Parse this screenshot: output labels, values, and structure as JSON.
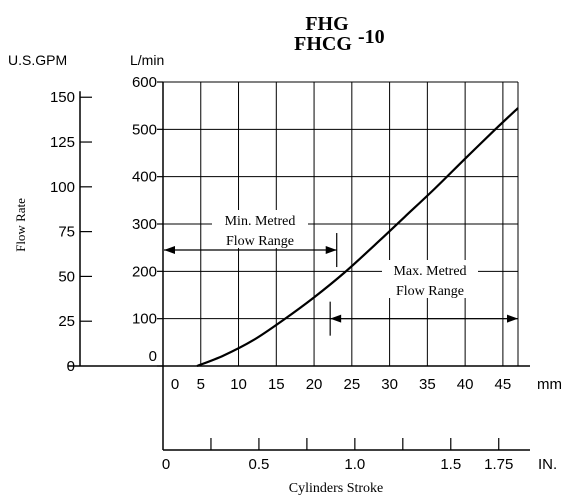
{
  "chart_data": {
    "type": "line",
    "title_line1": "FHG",
    "title_line2": "FHCG",
    "title_suffix": "-10",
    "left_axis_unit": "U.S.GPM",
    "right_axis_unit": "L/min",
    "ylabel": "Flow Rate",
    "xlabel": "Cylinders Stroke",
    "x_mm_unit": "mm",
    "x_in_unit": "IN.",
    "gpm_ticks": [
      "150",
      "125",
      "100",
      "75",
      "50",
      "25",
      "0"
    ],
    "gpm_tick_values": [
      150,
      125,
      100,
      75,
      50,
      25,
      0
    ],
    "lmin_ticks": [
      "600",
      "500",
      "400",
      "300",
      "200",
      "100",
      "0"
    ],
    "lmin_tick_values": [
      600,
      500,
      400,
      300,
      200,
      100,
      0
    ],
    "mm_ticks": [
      "0",
      "5",
      "10",
      "15",
      "20",
      "25",
      "30",
      "35",
      "40",
      "45"
    ],
    "mm_tick_values": [
      0,
      5,
      10,
      15,
      20,
      25,
      30,
      35,
      40,
      45
    ],
    "in_ticks": [
      "0",
      "0.5",
      "1.0",
      "1.5",
      "1.75"
    ],
    "in_tick_values": [
      0,
      0.5,
      1.0,
      1.5,
      1.75
    ],
    "xlim_mm": [
      0,
      47
    ],
    "ylim_lmin": [
      0,
      600
    ],
    "grid": true,
    "series": [
      {
        "x": [
          4.5,
          8,
          12,
          16,
          20,
          24,
          28,
          32,
          36,
          40,
          44,
          47
        ],
        "values": [
          0,
          22,
          55,
          98,
          145,
          197,
          255,
          315,
          375,
          438,
          500,
          545
        ]
      }
    ],
    "annotations": [
      {
        "line1": "Min. Metred",
        "line2": "Flow Range",
        "from_mm": 0,
        "to_mm": 23,
        "level_lmin": 245
      },
      {
        "line1": "Max. Metred",
        "line2": "Flow Range",
        "from_mm": 22,
        "to_mm": 47,
        "level_lmin": 100
      }
    ]
  }
}
